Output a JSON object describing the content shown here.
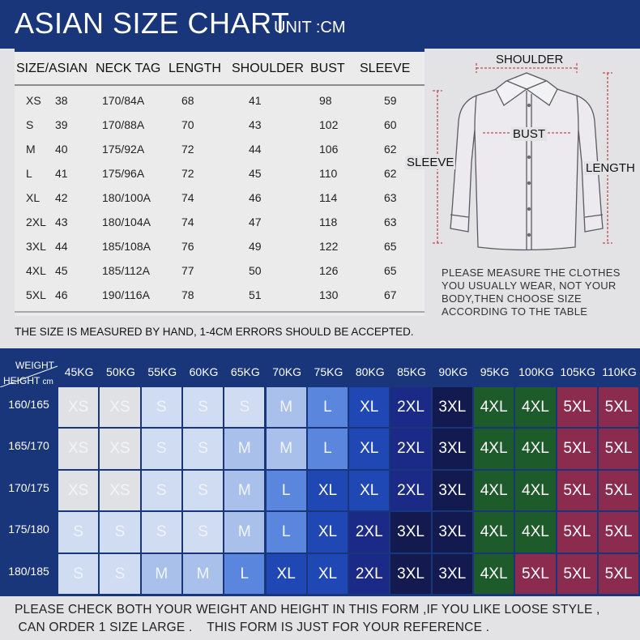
{
  "header": {
    "title": "ASIAN SIZE CHART",
    "unit": "UNIT :CM"
  },
  "size_table": {
    "columns": [
      "SIZE/ASIAN",
      "NECK TAG",
      "LENGTH",
      "SHOULDER",
      "BUST",
      "SLEEVE"
    ],
    "rows": [
      {
        "size": "XS",
        "asian": "38",
        "neck_tag": "170/84A",
        "length": "68",
        "shoulder": "41",
        "bust": "98",
        "sleeve": "59"
      },
      {
        "size": "S",
        "asian": "39",
        "neck_tag": "170/88A",
        "length": "70",
        "shoulder": "43",
        "bust": "102",
        "sleeve": "60"
      },
      {
        "size": "M",
        "asian": "40",
        "neck_tag": "175/92A",
        "length": "72",
        "shoulder": "44",
        "bust": "106",
        "sleeve": "62"
      },
      {
        "size": "L",
        "asian": "41",
        "neck_tag": "175/96A",
        "length": "72",
        "shoulder": "45",
        "bust": "110",
        "sleeve": "62"
      },
      {
        "size": "XL",
        "asian": "42",
        "neck_tag": "180/100A",
        "length": "74",
        "shoulder": "46",
        "bust": "114",
        "sleeve": "63"
      },
      {
        "size": "2XL",
        "asian": "43",
        "neck_tag": "180/104A",
        "length": "74",
        "shoulder": "47",
        "bust": "118",
        "sleeve": "63"
      },
      {
        "size": "3XL",
        "asian": "44",
        "neck_tag": "185/108A",
        "length": "76",
        "shoulder": "49",
        "bust": "122",
        "sleeve": "65"
      },
      {
        "size": "4XL",
        "asian": "45",
        "neck_tag": "185/112A",
        "length": "77",
        "shoulder": "50",
        "bust": "126",
        "sleeve": "65"
      },
      {
        "size": "5XL",
        "asian": "46",
        "neck_tag": "190/116A",
        "length": "78",
        "shoulder": "51",
        "bust": "130",
        "sleeve": "67"
      }
    ]
  },
  "diagram": {
    "shoulder": "SHOULDER",
    "bust": "BUST",
    "sleeve": "SLEEVE",
    "length": "LENGTH"
  },
  "note": [
    "PLEASE MEASURE THE CLOTHES",
    "YOU  USUALLY WEAR, NOT YOUR",
    "BODY,THEN CHOOSE SIZE",
    "ACCORDING TO THE TABLE"
  ],
  "measure_note": "THE SIZE IS MEASURED BY HAND, 1-4CM ERRORS SHOULD BE ACCEPTED.",
  "grid": {
    "weight_label": "WEIGHT",
    "height_label": "HEIGHT",
    "height_unit": "cm",
    "weights": [
      "45KG",
      "50KG",
      "55KG",
      "60KG",
      "65KG",
      "70KG",
      "75KG",
      "80KG",
      "85KG",
      "90KG",
      "95KG",
      "100KG",
      "105KG",
      "110KG"
    ],
    "heights": [
      "160/165",
      "165/170",
      "170/175",
      "175/180",
      "180/185"
    ],
    "cells": [
      [
        "XS",
        "XS",
        "S",
        "S",
        "S",
        "M",
        "L",
        "XL",
        "2XL",
        "3XL",
        "4XL",
        "4XL",
        "5XL",
        "5XL"
      ],
      [
        "XS",
        "XS",
        "S",
        "S",
        "M",
        "M",
        "L",
        "XL",
        "2XL",
        "3XL",
        "4XL",
        "4XL",
        "5XL",
        "5XL"
      ],
      [
        "XS",
        "XS",
        "S",
        "S",
        "M",
        "L",
        "XL",
        "XL",
        "2XL",
        "3XL",
        "4XL",
        "4XL",
        "5XL",
        "5XL"
      ],
      [
        "S",
        "S",
        "S",
        "S",
        "M",
        "L",
        "XL",
        "2XL",
        "3XL",
        "3XL",
        "4XL",
        "4XL",
        "5XL",
        "5XL"
      ],
      [
        "S",
        "S",
        "M",
        "M",
        "L",
        "XL",
        "XL",
        "2XL",
        "3XL",
        "3XL",
        "4XL",
        "5XL",
        "5XL",
        "5XL"
      ]
    ],
    "size_colors": {
      "XS": {
        "bg": "#dfe1e4",
        "fg": "#f4f4f6"
      },
      "S": {
        "bg": "#cfdcf1",
        "fg": "#f0f3f9"
      },
      "M": {
        "bg": "#a9c1ea",
        "fg": "#f2f5fb"
      },
      "L": {
        "bg": "#5a86de",
        "fg": "#f2f5fb"
      },
      "XL": {
        "bg": "#2048b4",
        "fg": "#ffffff"
      },
      "2XL": {
        "bg": "#1b2a86",
        "fg": "#ffffff"
      },
      "3XL": {
        "bg": "#131a4f",
        "fg": "#ffffff"
      },
      "4XL": {
        "bg": "#1e5b2b",
        "fg": "#ffffff"
      },
      "5XL": {
        "bg": "#8b2b4d",
        "fg": "#ffffff"
      }
    }
  },
  "footer": [
    "PLEASE CHECK BOTH YOUR WEIGHT AND HEIGHT IN THIS FORM ,IF YOU LIKE LOOSE STYLE ,",
    " CAN ORDER 1 SIZE LARGE .    THIS FORM IS JUST FOR YOUR REFERENCE ."
  ]
}
